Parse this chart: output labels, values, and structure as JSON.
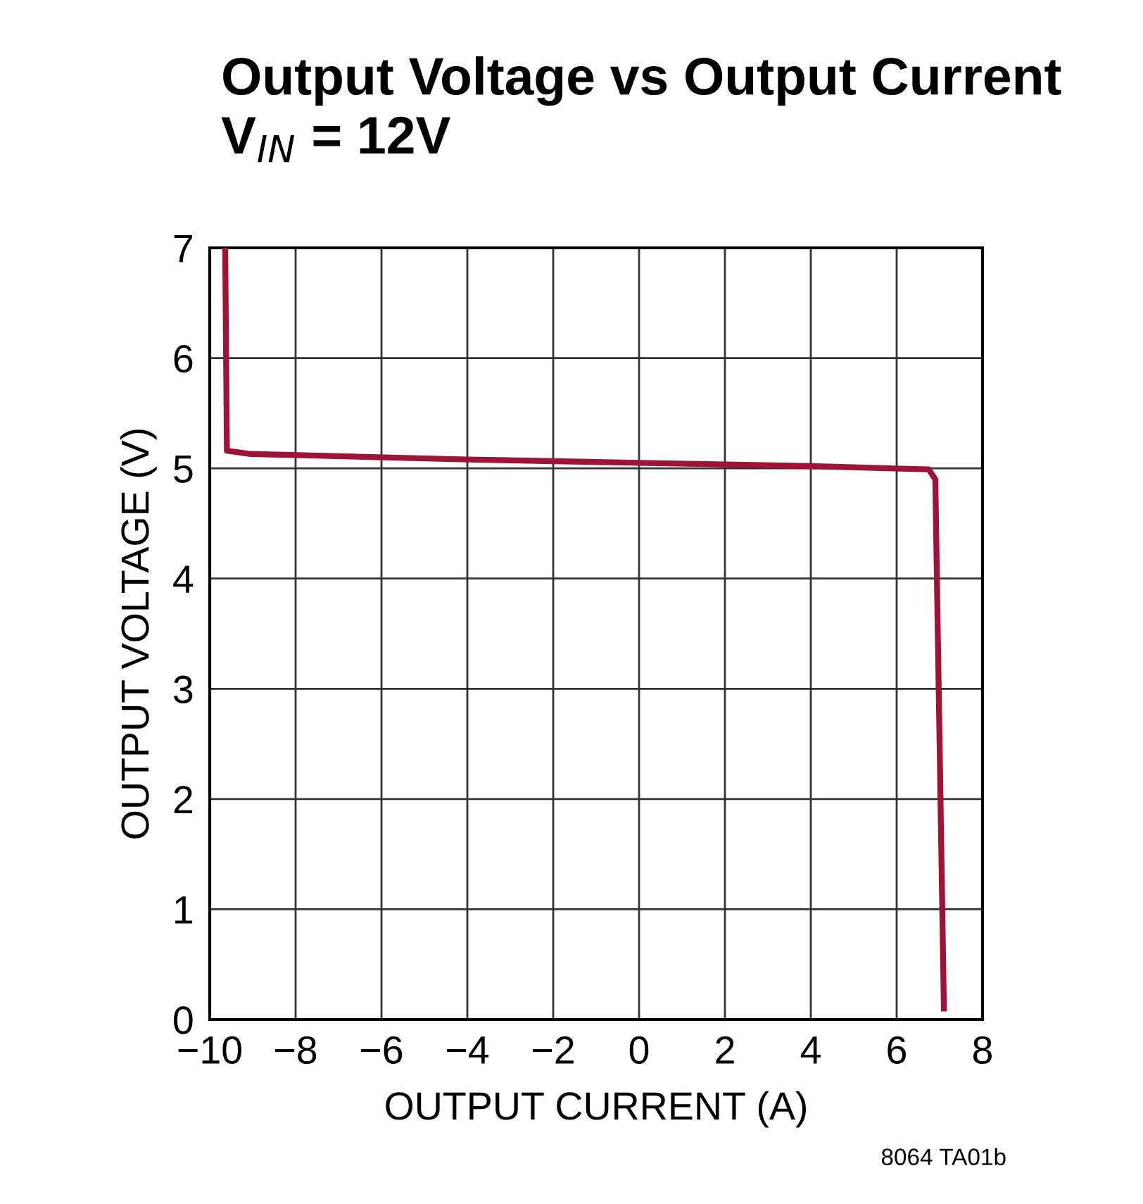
{
  "chart_data": {
    "type": "line",
    "title": "Output Voltage vs Output Current\nV$_{IN}$ = 12V",
    "xlabel": "OUTPUT CURRENT (A)",
    "ylabel": "OUTPUT VOLTAGE (V)",
    "x": [
      -9.64,
      -9.6,
      -9.05,
      -4,
      0,
      4,
      6.75,
      6.9,
      7.1
    ],
    "series": [
      {
        "color": "#9e1436",
        "values": [
          7,
          5.16,
          5.13,
          5.08,
          5.05,
          5.02,
          4.99,
          4.9,
          0.1
        ]
      }
    ],
    "xlim": [
      -10,
      8
    ],
    "xticks": [
      {
        "value": -10,
        "label": "−10"
      },
      {
        "value": -8,
        "label": "−8"
      },
      {
        "value": -6,
        "label": "−6"
      },
      {
        "value": -4,
        "label": "−4"
      },
      {
        "value": -2,
        "label": "−2"
      },
      0,
      2,
      4,
      6,
      8
    ],
    "ylim": [
      0,
      7
    ],
    "yticks": [
      0,
      1,
      2,
      3,
      4,
      5,
      6,
      7
    ],
    "grid": true,
    "marker": "none",
    "line_style": "solid",
    "annotations": [
      "8064 TA01b"
    ]
  }
}
